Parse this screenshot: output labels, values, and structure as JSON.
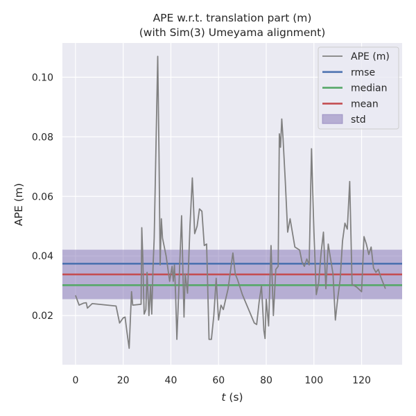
{
  "chart_data": {
    "type": "line",
    "title": [
      "APE w.r.t. translation part (m)",
      "(with Sim(3) Umeyama alignment)"
    ],
    "xlabel_italic": "t",
    "xlabel_rest": " (s)",
    "ylabel": "APE (m)",
    "xlim": [
      -5.5,
      137
    ],
    "ylim": [
      0.0035,
      0.1115
    ],
    "xticks": [
      0,
      20,
      40,
      60,
      80,
      100,
      120
    ],
    "yticks": [
      0.02,
      0.04,
      0.06,
      0.08,
      0.1
    ],
    "ytick_labels": [
      "0.02",
      "0.04",
      "0.06",
      "0.08",
      "0.10"
    ],
    "grid": true,
    "legend_position": "top-right",
    "colors": {
      "background": "#eaeaf2",
      "ape": "#808080",
      "rmse": "#4c72b0",
      "median": "#55a868",
      "mean": "#c44e52",
      "std_fill": "#8172b3"
    },
    "stats": {
      "rmse": 0.0374,
      "median": 0.0302,
      "mean": 0.0338,
      "std_low": 0.0255,
      "std_high": 0.0421
    },
    "legend": [
      {
        "label": "APE (m)",
        "kind": "line",
        "key": "ape"
      },
      {
        "label": "rmse",
        "kind": "line",
        "key": "rmse"
      },
      {
        "label": "median",
        "kind": "line",
        "key": "median"
      },
      {
        "label": "mean",
        "kind": "line",
        "key": "mean"
      },
      {
        "label": "std",
        "kind": "patch",
        "key": "std_fill"
      }
    ],
    "series": [
      {
        "name": "APE (m)",
        "x": [
          0,
          1.5,
          3.5,
          4.5,
          5,
          7,
          17,
          18.5,
          20,
          20.8,
          21.5,
          22.5,
          23.5,
          24,
          27.5,
          27.8,
          28.2,
          28.8,
          29.5,
          30,
          30.8,
          31.5,
          32,
          32.5,
          33,
          34.5,
          35,
          35.5,
          36,
          36.5,
          38,
          39.5,
          40.5,
          41,
          41.5,
          42,
          42.5,
          43,
          44.5,
          45.5,
          46,
          47,
          48,
          49,
          50,
          51,
          52,
          53,
          54,
          55,
          56,
          57,
          58,
          59,
          60,
          61,
          62,
          63,
          64,
          66,
          67,
          68,
          70,
          75,
          76,
          77,
          78,
          79,
          79.5,
          80,
          81,
          82,
          83,
          84,
          85,
          85.5,
          86,
          86.5,
          87,
          88,
          89,
          90,
          92,
          94,
          95,
          96,
          97,
          98,
          99,
          100,
          101,
          102,
          103,
          104,
          105,
          106,
          107,
          108,
          109,
          110,
          111,
          112,
          113,
          114,
          115,
          116,
          117,
          118,
          120,
          121,
          122,
          123,
          124,
          125,
          126,
          127,
          128,
          129,
          130
        ],
        "y": [
          0.0268,
          0.0235,
          0.0242,
          0.0243,
          0.0225,
          0.024,
          0.0232,
          0.0175,
          0.0192,
          0.0195,
          0.015,
          0.009,
          0.028,
          0.0235,
          0.0238,
          0.0495,
          0.04,
          0.0205,
          0.022,
          0.0345,
          0.02,
          0.03,
          0.0205,
          0.036,
          0.046,
          0.107,
          0.075,
          0.037,
          0.0525,
          0.046,
          0.04,
          0.0315,
          0.0365,
          0.0315,
          0.037,
          0.027,
          0.012,
          0.022,
          0.0535,
          0.0195,
          0.034,
          0.0275,
          0.05,
          0.0662,
          0.0475,
          0.05,
          0.0558,
          0.055,
          0.0435,
          0.044,
          0.012,
          0.012,
          0.02,
          0.0325,
          0.0185,
          0.0235,
          0.022,
          0.0255,
          0.029,
          0.041,
          0.034,
          0.032,
          0.027,
          0.0175,
          0.017,
          0.0245,
          0.03,
          0.015,
          0.0123,
          0.0255,
          0.0165,
          0.0435,
          0.02,
          0.0355,
          0.0365,
          0.081,
          0.0765,
          0.086,
          0.08,
          0.065,
          0.048,
          0.0525,
          0.043,
          0.042,
          0.038,
          0.0365,
          0.039,
          0.037,
          0.076,
          0.048,
          0.027,
          0.031,
          0.041,
          0.048,
          0.029,
          0.044,
          0.039,
          0.034,
          0.0185,
          0.026,
          0.032,
          0.045,
          0.051,
          0.049,
          0.065,
          0.0305,
          0.03,
          0.0295,
          0.028,
          0.0465,
          0.044,
          0.0405,
          0.043,
          0.036,
          0.0345,
          0.0355,
          0.033,
          0.031,
          0.029
        ]
      }
    ]
  }
}
